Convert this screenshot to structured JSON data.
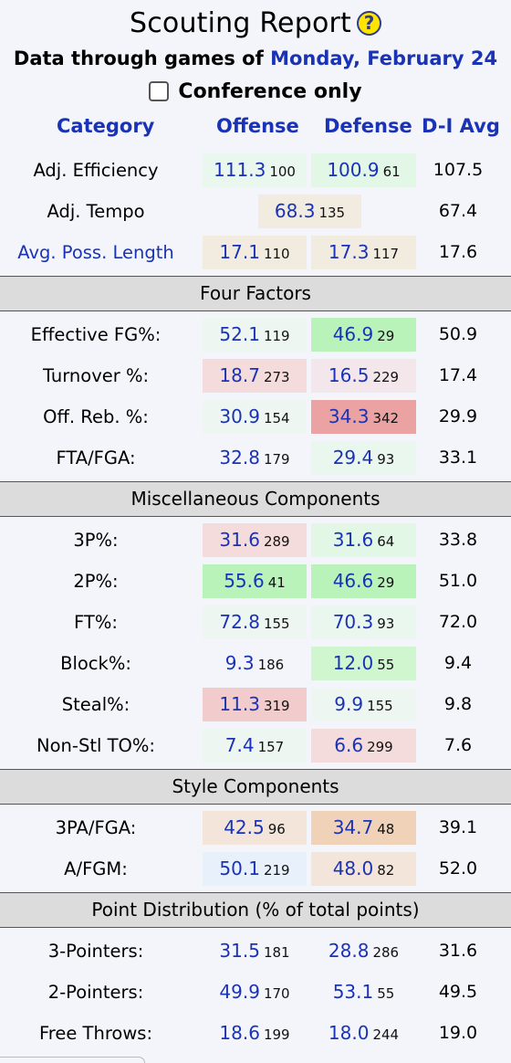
{
  "header": {
    "title": "Scouting Report",
    "help_glyph": "?",
    "subtitle_prefix": "Data through games of ",
    "subtitle_date": "Monday, February 24",
    "conference_label": "Conference only"
  },
  "columns": {
    "category": "Category",
    "offense": "Offense",
    "defense": "Defense",
    "avg": "D-I Avg"
  },
  "top_rows": [
    {
      "label": "Adj. Efficiency",
      "link": false,
      "off": "111.3",
      "off_rank": "100",
      "off_color": "c-green-pale",
      "def": "100.9",
      "def_rank": "61",
      "def_color": "c-green-light",
      "avg": "107.5"
    },
    {
      "label": "Adj. Tempo",
      "link": false,
      "tempo": "68.3",
      "tempo_rank": "135",
      "tempo_color": "c-tan-pale",
      "avg": "67.4"
    },
    {
      "label": "Avg. Poss. Length",
      "link": true,
      "off": "17.1",
      "off_rank": "110",
      "off_color": "c-tan-pale",
      "def": "17.3",
      "def_rank": "117",
      "def_color": "c-tan-pale",
      "avg": "17.6"
    }
  ],
  "sections": [
    {
      "title": "Four Factors",
      "rows": [
        {
          "label": "Effective FG%:",
          "off": "52.1",
          "off_rank": "119",
          "off_color": "c-green-faint",
          "def": "46.9",
          "def_rank": "29",
          "def_color": "c-green-strong",
          "avg": "50.9"
        },
        {
          "label": "Turnover %:",
          "off": "18.7",
          "off_rank": "273",
          "off_color": "c-red-light",
          "def": "16.5",
          "def_rank": "229",
          "def_color": "c-red-pale",
          "avg": "17.4"
        },
        {
          "label": "Off. Reb. %:",
          "off": "30.9",
          "off_rank": "154",
          "off_color": "c-green-faint",
          "def": "34.3",
          "def_rank": "342",
          "def_color": "c-red-strong",
          "avg": "29.9"
        },
        {
          "label": "FTA/FGA:",
          "off": "32.8",
          "off_rank": "179",
          "off_color": "c-none",
          "def": "29.4",
          "def_rank": "93",
          "def_color": "c-green-pale",
          "avg": "33.1"
        }
      ]
    },
    {
      "title": "Miscellaneous Components",
      "rows": [
        {
          "label": "3P%:",
          "off": "31.6",
          "off_rank": "289",
          "off_color": "c-red-light",
          "def": "31.6",
          "def_rank": "64",
          "def_color": "c-green-light",
          "avg": "33.8"
        },
        {
          "label": "2P%:",
          "off": "55.6",
          "off_rank": "41",
          "off_color": "c-green-strong",
          "def": "46.6",
          "def_rank": "29",
          "def_color": "c-green-strong",
          "avg": "51.0"
        },
        {
          "label": "FT%:",
          "off": "72.8",
          "off_rank": "155",
          "off_color": "c-green-faint",
          "def": "70.3",
          "def_rank": "93",
          "def_color": "c-green-pale",
          "avg": "72.0"
        },
        {
          "label": "Block%:",
          "off": "9.3",
          "off_rank": "186",
          "off_color": "c-none",
          "def": "12.0",
          "def_rank": "55",
          "def_color": "c-green-mid",
          "avg": "9.4"
        },
        {
          "label": "Steal%:",
          "off": "11.3",
          "off_rank": "319",
          "off_color": "c-red-mid",
          "def": "9.9",
          "def_rank": "155",
          "def_color": "c-green-faint",
          "avg": "9.8"
        },
        {
          "label": "Non-Stl TO%:",
          "off": "7.4",
          "off_rank": "157",
          "off_color": "c-green-faint",
          "def": "6.6",
          "def_rank": "299",
          "def_color": "c-red-light",
          "avg": "7.6"
        }
      ]
    },
    {
      "title": "Style Components",
      "rows": [
        {
          "label": "3PA/FGA:",
          "off": "42.5",
          "off_rank": "96",
          "off_color": "c-tan-light",
          "def": "34.7",
          "def_rank": "48",
          "def_color": "c-tan-strong",
          "avg": "39.1"
        },
        {
          "label": "A/FGM:",
          "off": "50.1",
          "off_rank": "219",
          "off_color": "c-blue-pale",
          "def": "48.0",
          "def_rank": "82",
          "def_color": "c-tan-light",
          "avg": "52.0"
        }
      ]
    },
    {
      "title": "Point Distribution (% of total points)",
      "rows": [
        {
          "label": "3-Pointers:",
          "off": "31.5",
          "off_rank": "181",
          "off_color": "c-none",
          "def": "28.8",
          "def_rank": "286",
          "def_color": "c-none",
          "avg": "31.6"
        },
        {
          "label": "2-Pointers:",
          "off": "49.9",
          "off_rank": "170",
          "off_color": "c-none",
          "def": "53.1",
          "def_rank": "55",
          "def_color": "c-none",
          "avg": "49.5"
        },
        {
          "label": "Free Throws:",
          "off": "18.6",
          "off_rank": "199",
          "off_color": "c-none",
          "def": "18.0",
          "def_rank": "244",
          "def_color": "c-none",
          "avg": "19.0"
        }
      ]
    }
  ]
}
